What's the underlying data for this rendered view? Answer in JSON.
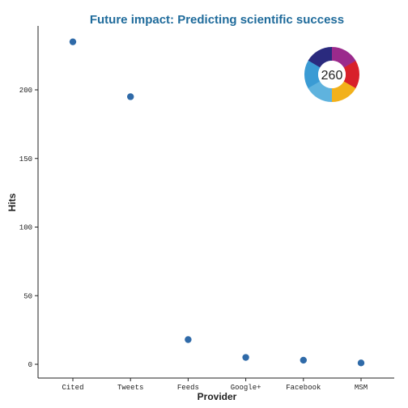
{
  "chart_data": {
    "type": "scatter",
    "title": "Future impact: Predicting scientific success",
    "xlabel": "Provider",
    "ylabel": "Hits",
    "categories": [
      "Cited",
      "Tweets",
      "Feeds",
      "Google+",
      "Facebook",
      "MSM"
    ],
    "values": [
      235,
      195,
      18,
      5,
      3,
      1
    ],
    "yticks": [
      0,
      50,
      100,
      150,
      200
    ],
    "ylim": [
      -5,
      246
    ],
    "grid": false,
    "legend": "none"
  },
  "badge": {
    "score": "260",
    "colors": [
      "#2a2a7e",
      "#9b2a8c",
      "#d8202a",
      "#f2b11b",
      "#5fb3de",
      "#3a9bd4"
    ]
  },
  "colors": {
    "title": "#1f6b9b",
    "point": "#2f6aa8",
    "axis": "#222222"
  }
}
